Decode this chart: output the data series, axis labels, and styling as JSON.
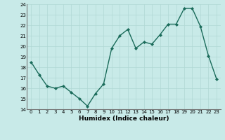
{
  "x": [
    0,
    1,
    2,
    3,
    4,
    5,
    6,
    7,
    8,
    9,
    10,
    11,
    12,
    13,
    14,
    15,
    16,
    17,
    18,
    19,
    20,
    21,
    22,
    23
  ],
  "y": [
    18.5,
    17.3,
    16.2,
    16.0,
    16.2,
    15.6,
    15.0,
    14.3,
    15.5,
    16.4,
    19.8,
    21.0,
    21.6,
    19.8,
    20.4,
    20.2,
    21.1,
    22.1,
    22.1,
    23.6,
    23.6,
    21.9,
    19.1,
    16.9
  ],
  "line_color": "#1a6b5a",
  "marker": "D",
  "marker_size": 2.0,
  "bg_color": "#c8eae8",
  "grid_color": "#b0d8d4",
  "xlabel": "Humidex (Indice chaleur)",
  "ylim": [
    14,
    24
  ],
  "xlim": [
    -0.5,
    23.5
  ],
  "yticks": [
    14,
    15,
    16,
    17,
    18,
    19,
    20,
    21,
    22,
    23,
    24
  ],
  "xticks": [
    0,
    1,
    2,
    3,
    4,
    5,
    6,
    7,
    8,
    9,
    10,
    11,
    12,
    13,
    14,
    15,
    16,
    17,
    18,
    19,
    20,
    21,
    22,
    23
  ],
  "xlabel_fontsize": 6.5,
  "tick_fontsize": 5.0,
  "linewidth": 1.0
}
